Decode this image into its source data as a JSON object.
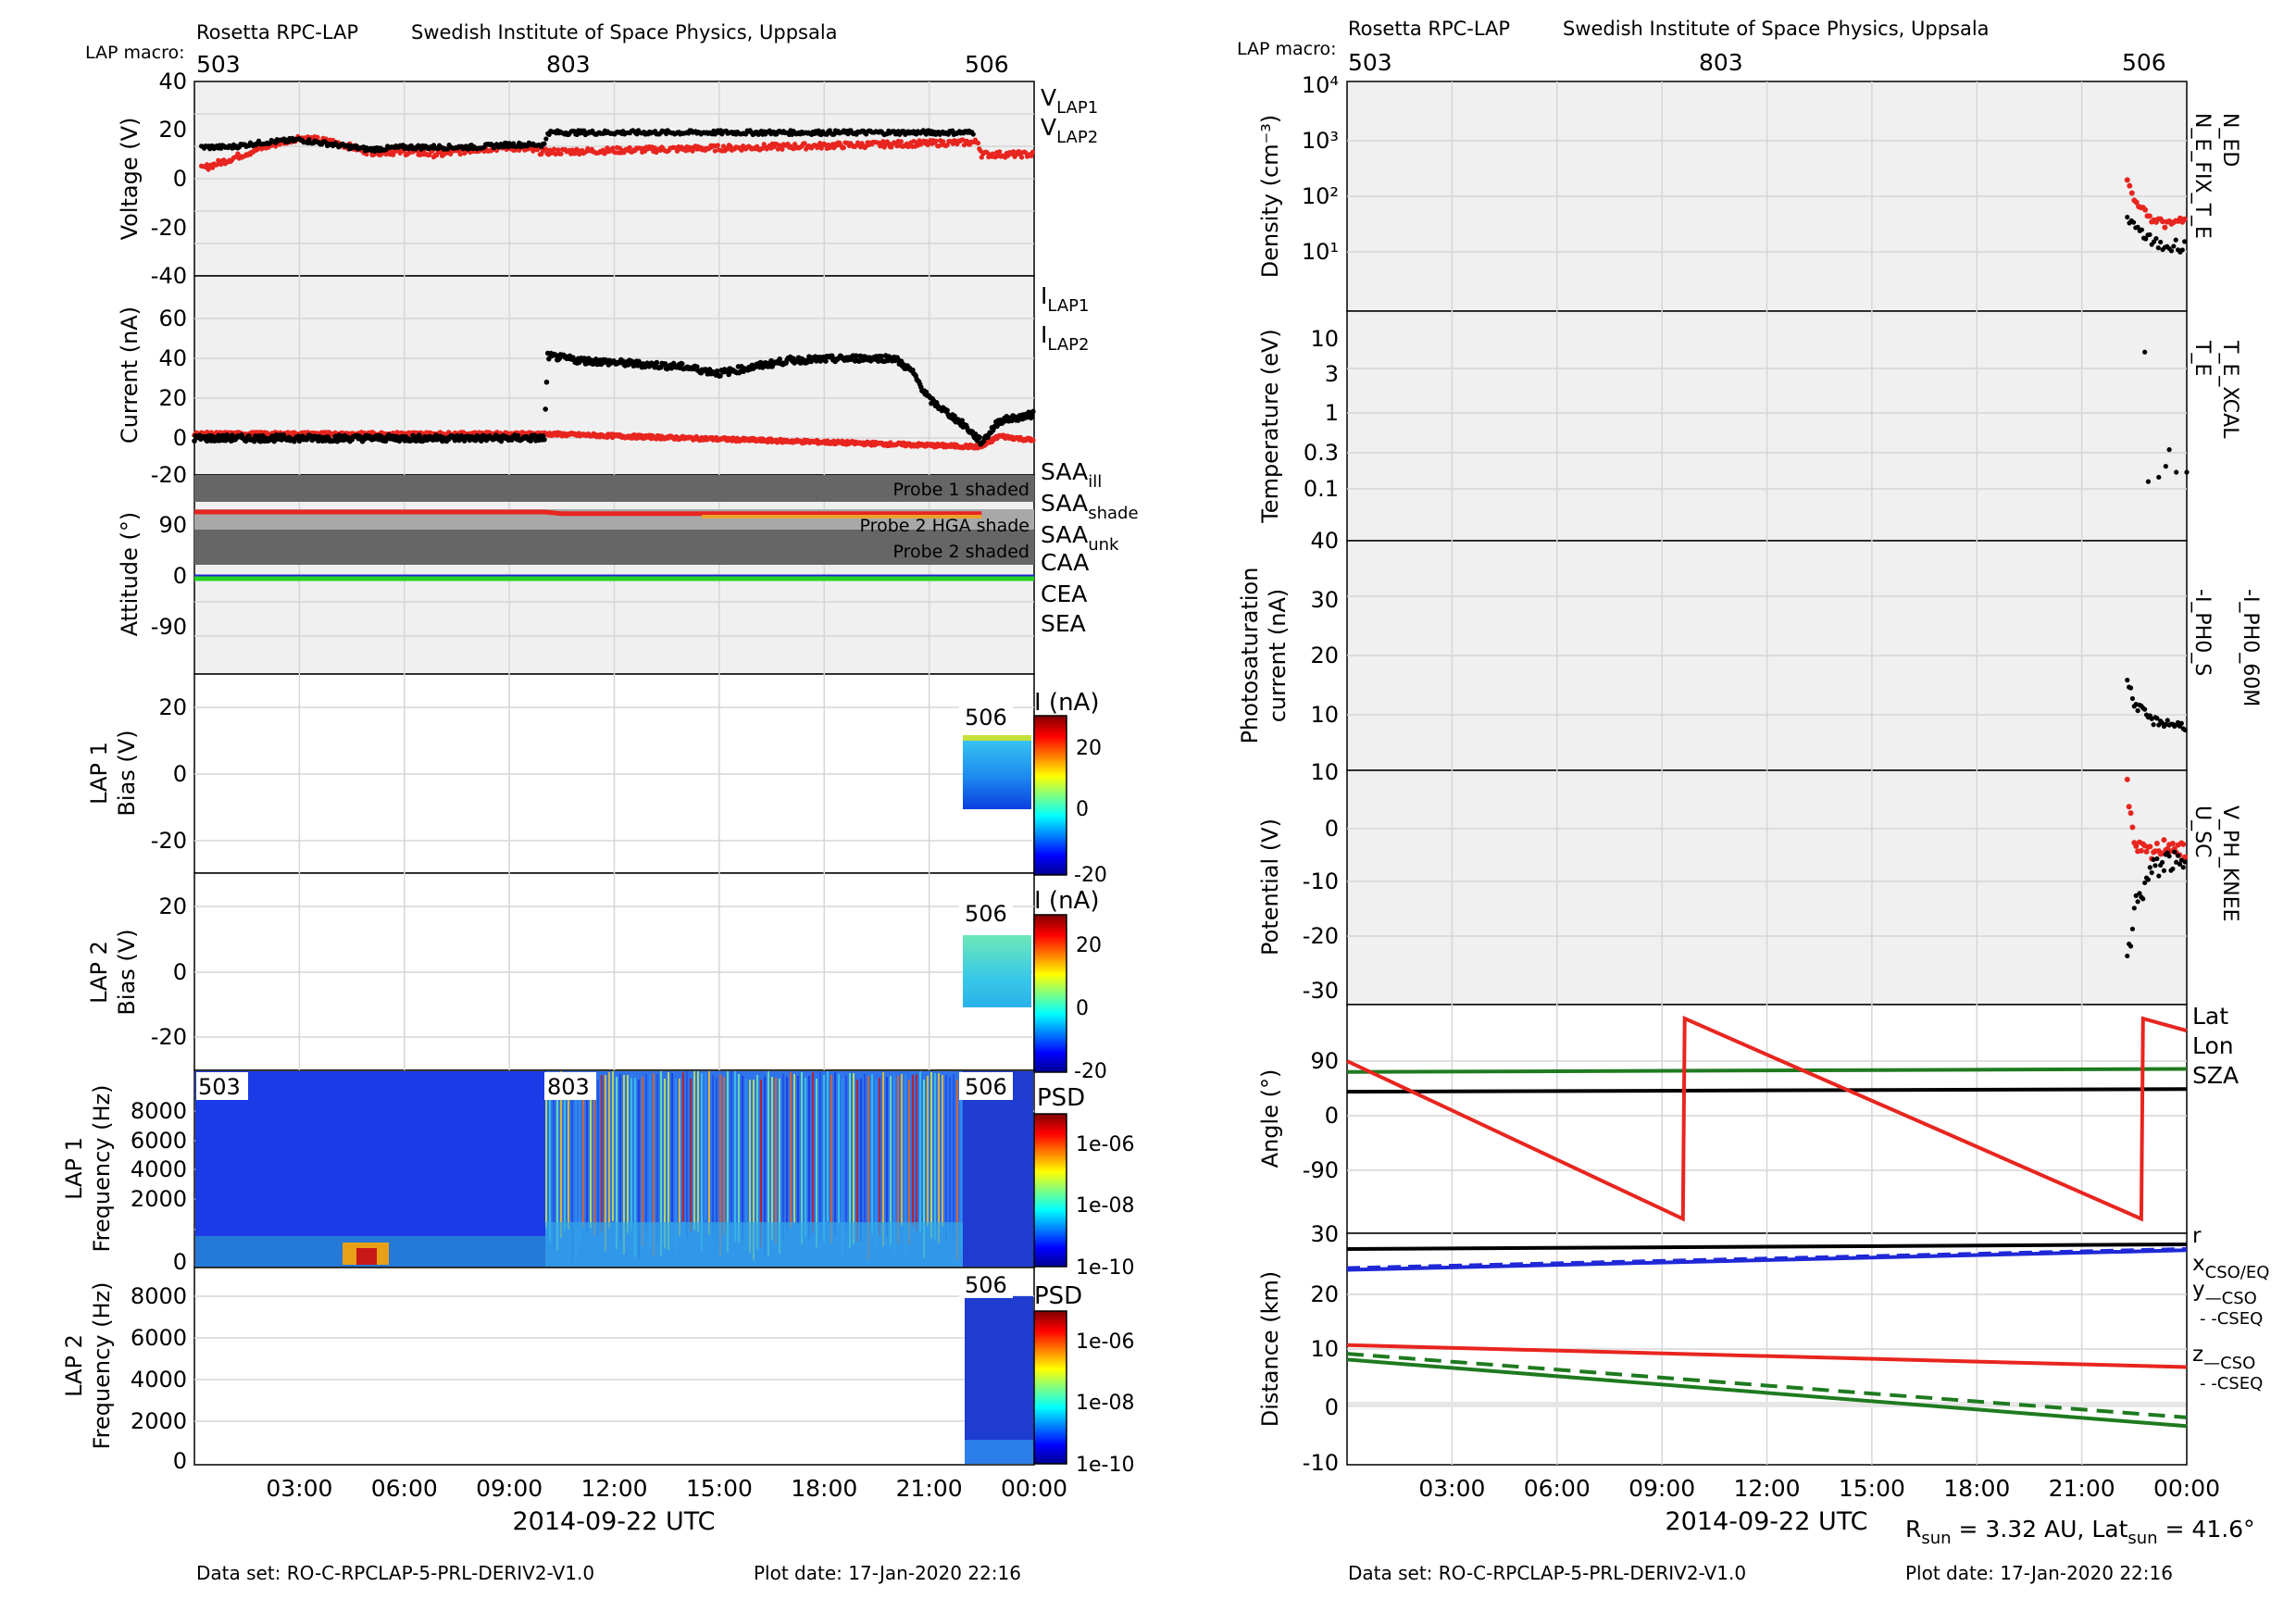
{
  "left": {
    "header": {
      "mission": "Rosetta RPC-LAP",
      "institute": "Swedish Institute of Space Physics, Uppsala",
      "macro_label": "LAP macro:",
      "macros": [
        "503",
        "803",
        "506"
      ]
    },
    "xaxis": {
      "date_label": "2014-09-22 UTC",
      "ticks": [
        "03:00",
        "06:00",
        "09:00",
        "12:00",
        "15:00",
        "18:00",
        "21:00",
        "00:00"
      ]
    },
    "footer": {
      "dataset": "Data set: RO-C-RPCLAP-5-PRL-DERIV2-V1.0",
      "plot_date": "Plot date: 17-Jan-2020 22:16"
    },
    "voltage": {
      "ylabel": "Voltage (V)",
      "ticks": [
        "40",
        "20",
        "0",
        "-20",
        "-40"
      ],
      "legend": [
        "V",
        "LAP1",
        "V",
        "LAP2"
      ]
    },
    "current": {
      "ylabel": "Current (nA)",
      "ticks": [
        "60",
        "40",
        "20",
        "0",
        "-20"
      ],
      "legend": [
        "I",
        "LAP1",
        "I",
        "LAP2"
      ]
    },
    "attitude": {
      "ylabel": "Attitude (°)",
      "ticks": [
        "90",
        "0",
        "-90"
      ],
      "shade1": "Probe 1 shaded",
      "shade_hga": "Probe 2 HGA shade",
      "shade2": "Probe 2 shaded",
      "legend": [
        {
          "main": "SAA",
          "sub": "ill",
          "color": "#e8251f"
        },
        {
          "main": "SAA",
          "sub": "shade",
          "color": "#eaa32c"
        },
        {
          "main": "SAA",
          "sub": "unk",
          "color": "#d61fd6"
        },
        {
          "main": "CAA",
          "sub": "",
          "color": "#1f28d6"
        },
        {
          "main": "CEA",
          "sub": "",
          "color": "#22d322"
        },
        {
          "main": "SEA",
          "sub": "",
          "color": "#000000"
        }
      ]
    },
    "bias1": {
      "ylabel1": "LAP 1",
      "ylabel2": "Bias (V)",
      "ticks": [
        "20",
        "0",
        "-20"
      ],
      "macro": "506",
      "cb_title": "I (nA)",
      "cb_ticks": [
        "20",
        "0",
        "-20"
      ]
    },
    "bias2": {
      "ylabel1": "LAP 2",
      "ylabel2": "Bias (V)",
      "ticks": [
        "20",
        "0",
        "-20"
      ],
      "macro": "506",
      "cb_title": "I (nA)",
      "cb_ticks": [
        "20",
        "0",
        "-20"
      ]
    },
    "spec1": {
      "ylabel1": "LAP 1",
      "ylabel2": "Frequency (Hz)",
      "ticks": [
        "8000",
        "6000",
        "4000",
        "2000",
        "0"
      ],
      "macros": [
        "503",
        "803",
        "506"
      ],
      "cb_title": "PSD",
      "cb_ticks": [
        "1e-06",
        "1e-08",
        "1e-10"
      ]
    },
    "spec2": {
      "ylabel1": "LAP 2",
      "ylabel2": "Frequency (Hz)",
      "ticks": [
        "8000",
        "6000",
        "4000",
        "2000",
        "0"
      ],
      "macro": "506",
      "cb_title": "PSD",
      "cb_ticks": [
        "1e-06",
        "1e-08",
        "1e-10"
      ]
    }
  },
  "right": {
    "header": {
      "mission": "Rosetta RPC-LAP",
      "institute": "Swedish Institute of Space Physics, Uppsala",
      "macro_label": "LAP macro:",
      "macros": [
        "503",
        "803",
        "506"
      ]
    },
    "xaxis": {
      "date_label": "2014-09-22 UTC",
      "ticks": [
        "03:00",
        "06:00",
        "09:00",
        "12:00",
        "15:00",
        "18:00",
        "21:00",
        "00:00"
      ]
    },
    "footer": {
      "dataset": "Data set: RO-C-RPCLAP-5-PRL-DERIV2-V1.0",
      "plot_date": "Plot date: 17-Jan-2020 22:16"
    },
    "rsun": {
      "r_main": "R",
      "r_sub": "sun",
      "r_val": " = 3.32 AU, Lat",
      "lat_sub": "sun",
      "lat_val": " = 41.6°"
    },
    "density": {
      "ylabel": "Density (cm⁻³)",
      "ticks": [
        "10⁴",
        "10³",
        "10²",
        "10¹"
      ],
      "legend_black": "N_E_FIX_T_E",
      "legend_red": "N_ED"
    },
    "temperature": {
      "ylabel": "Temperature (eV)",
      "ticks": [
        "10",
        "3",
        "1",
        "0.3",
        "0.1"
      ],
      "legend_black": "T_E",
      "legend_red": "T_E_XCAL"
    },
    "photo": {
      "ylabel1": "Photosaturation",
      "ylabel2": "current (nA)",
      "ticks": [
        "40",
        "30",
        "20",
        "10"
      ],
      "legend_black": "-I_PH0_S",
      "legend_red": "-I_PH0_60M"
    },
    "potential": {
      "ylabel": "Potential (V)",
      "ticks": [
        "10",
        "0",
        "-10",
        "-20",
        "-30"
      ],
      "legend_black": "U_SC",
      "legend_red": "V_PH_KNEE"
    },
    "angle": {
      "ylabel": "Angle (°)",
      "ticks": [
        "90",
        "0",
        "-90"
      ],
      "legend": [
        {
          "label": "Lat",
          "color": "#000000"
        },
        {
          "label": "Lon",
          "color": "#e8251f"
        },
        {
          "label": "SZA",
          "color": "#1f7a1f"
        }
      ]
    },
    "distance": {
      "ylabel": "Distance (km)",
      "ticks": [
        "30",
        "20",
        "10",
        "0",
        "-10"
      ],
      "legend": [
        {
          "main": "r",
          "sub": "",
          "color": "#000000"
        },
        {
          "main": "x",
          "sub": "CSO/EQ",
          "color": "#e8251f"
        },
        {
          "main": "y",
          "sub": "—CSO",
          "color": "#1f7a1f"
        },
        {
          "main": "",
          "sub": "- -CSEQ",
          "color": "#1f7a1f"
        },
        {
          "main": "z",
          "sub": "—CSO",
          "color": "#1f28d6"
        },
        {
          "main": "",
          "sub": "- -CSEQ",
          "color": "#1f28d6"
        }
      ]
    }
  },
  "colors": {
    "black": "#000000",
    "red": "#e8251f",
    "green": "#1f7a1f",
    "blue": "#1f28d6",
    "panel_bg": "#f0f0f0",
    "grid": "#d6d6d6"
  },
  "chart_data": [
    {
      "type": "scatter",
      "name": "Voltage",
      "x_unit": "hours UTC",
      "ylim": [
        -40,
        40
      ],
      "series": [
        {
          "name": "VLAP1",
          "points": [
            [
              0.2,
              13
            ],
            [
              1,
              13
            ],
            [
              2,
              15
            ],
            [
              3,
              16
            ],
            [
              4,
              14
            ],
            [
              5,
              12
            ],
            [
              6,
              13
            ],
            [
              7,
              13
            ],
            [
              8,
              13
            ],
            [
              9,
              14
            ],
            [
              10,
              14
            ],
            [
              10.1,
              19
            ],
            [
              15,
              19
            ],
            [
              20,
              19
            ],
            [
              22.3,
              19
            ]
          ]
        },
        {
          "name": "VLAP2",
          "points": [
            [
              0.2,
              4
            ],
            [
              1,
              8
            ],
            [
              2,
              13
            ],
            [
              3,
              17
            ],
            [
              4,
              15
            ],
            [
              5,
              11
            ],
            [
              6,
              11
            ],
            [
              7,
              10
            ],
            [
              8,
              12
            ],
            [
              9,
              13
            ],
            [
              10,
              11
            ],
            [
              22.4,
              15
            ],
            [
              22.5,
              10
            ],
            [
              24,
              10
            ]
          ]
        }
      ]
    },
    {
      "type": "scatter",
      "name": "Current",
      "x_unit": "hours UTC",
      "ylim": [
        -20,
        70
      ],
      "series": [
        {
          "name": "ILAP1",
          "points": [
            [
              0,
              -3
            ],
            [
              10,
              -3
            ],
            [
              10.1,
              35
            ],
            [
              11,
              33
            ],
            [
              13,
              31
            ],
            [
              14,
              30
            ],
            [
              15,
              27
            ],
            [
              16,
              30
            ],
            [
              17,
              33
            ],
            [
              19,
              34
            ],
            [
              20,
              34
            ],
            [
              20.5,
              28
            ],
            [
              21,
              15
            ],
            [
              22,
              3
            ],
            [
              22.5,
              -5
            ],
            [
              23,
              5
            ],
            [
              24,
              8
            ]
          ]
        },
        {
          "name": "ILAP2",
          "points": [
            [
              0,
              -1
            ],
            [
              10,
              -1
            ],
            [
              22.5,
              -7
            ],
            [
              23,
              -2
            ],
            [
              24,
              -4
            ]
          ]
        }
      ]
    },
    {
      "type": "line",
      "name": "Attitude",
      "x_unit": "hours UTC",
      "ylim": [
        -140,
        160
      ],
      "series": [
        {
          "name": "SAA ill",
          "points": [
            [
              0,
              95
            ],
            [
              10,
              95
            ],
            [
              10.5,
              92
            ],
            [
              22.5,
              92
            ]
          ]
        },
        {
          "name": "SAA shade",
          "points": [
            [
              14.5,
              90
            ],
            [
              22.5,
              90
            ]
          ]
        },
        {
          "name": "CAA",
          "points": [
            [
              0,
              0
            ],
            [
              24,
              0
            ]
          ]
        },
        {
          "name": "CEA",
          "points": [
            [
              0,
              -1
            ],
            [
              24,
              -1
            ]
          ]
        }
      ]
    },
    {
      "type": "line",
      "name": "Angle",
      "x_unit": "hours UTC",
      "ylim": [
        -140,
        140
      ],
      "series": [
        {
          "name": "Lat",
          "points": [
            [
              0,
              39.5
            ],
            [
              24,
              44
            ]
          ]
        },
        {
          "name": "Lon",
          "points": [
            [
              0,
              90
            ],
            [
              9.6,
              -170
            ],
            [
              9.65,
              160
            ],
            [
              22.7,
              -170
            ],
            [
              22.75,
              160
            ],
            [
              24,
              140
            ]
          ]
        },
        {
          "name": "SZA",
          "points": [
            [
              0,
              72
            ],
            [
              24,
              77
            ]
          ]
        }
      ]
    },
    {
      "type": "line",
      "name": "Distance",
      "x_unit": "hours UTC",
      "ylim": [
        -10,
        30
      ],
      "series": [
        {
          "name": "r",
          "points": [
            [
              0,
              27.6
            ],
            [
              24,
              28.4
            ]
          ]
        },
        {
          "name": "x",
          "points": [
            [
              0,
              11
            ],
            [
              24,
              7.2
            ]
          ]
        },
        {
          "name": "y CSO",
          "points": [
            [
              0,
              8.5
            ],
            [
              24,
              -3
            ]
          ]
        },
        {
          "name": "y CSEQ",
          "points": [
            [
              0,
              9.5
            ],
            [
              24,
              -1.5
            ]
          ]
        },
        {
          "name": "z CSO",
          "points": [
            [
              0,
              24
            ],
            [
              24,
              27.4
            ]
          ]
        },
        {
          "name": "z CSEQ",
          "points": [
            [
              0,
              24.3
            ],
            [
              24,
              27.6
            ]
          ]
        }
      ]
    },
    {
      "type": "scatter",
      "name": "Density",
      "x_unit": "hours UTC",
      "scale": "log",
      "series": [
        {
          "name": "N_E_FIX_T_E",
          "points": [
            [
              22.3,
              40
            ],
            [
              22.6,
              25
            ],
            [
              23,
              15
            ],
            [
              23.5,
              12
            ],
            [
              24,
              15
            ]
          ]
        },
        {
          "name": "N_ED",
          "points": [
            [
              22.3,
              200
            ],
            [
              22.5,
              80
            ],
            [
              23,
              40
            ],
            [
              23.5,
              30
            ],
            [
              24,
              40
            ]
          ]
        }
      ]
    },
    {
      "type": "scatter",
      "name": "Photosaturation current",
      "x_unit": "hours UTC",
      "series": [
        {
          "name": "-I_PH0_S",
          "points": [
            [
              22.3,
              16
            ],
            [
              22.5,
              12
            ],
            [
              23,
              9
            ],
            [
              24,
              8
            ]
          ]
        }
      ]
    },
    {
      "type": "scatter",
      "name": "Potential",
      "x_unit": "hours UTC",
      "series": [
        {
          "name": "U_SC",
          "points": [
            [
              22.3,
              -25
            ],
            [
              22.5,
              -15
            ],
            [
              23,
              -8
            ],
            [
              23.5,
              -6
            ],
            [
              24,
              -8
            ]
          ]
        },
        {
          "name": "V_PH_KNEE",
          "points": [
            [
              22.3,
              8
            ],
            [
              22.5,
              -4
            ],
            [
              23,
              -5
            ],
            [
              23.5,
              -3
            ],
            [
              24,
              -5
            ]
          ]
        }
      ]
    }
  ]
}
